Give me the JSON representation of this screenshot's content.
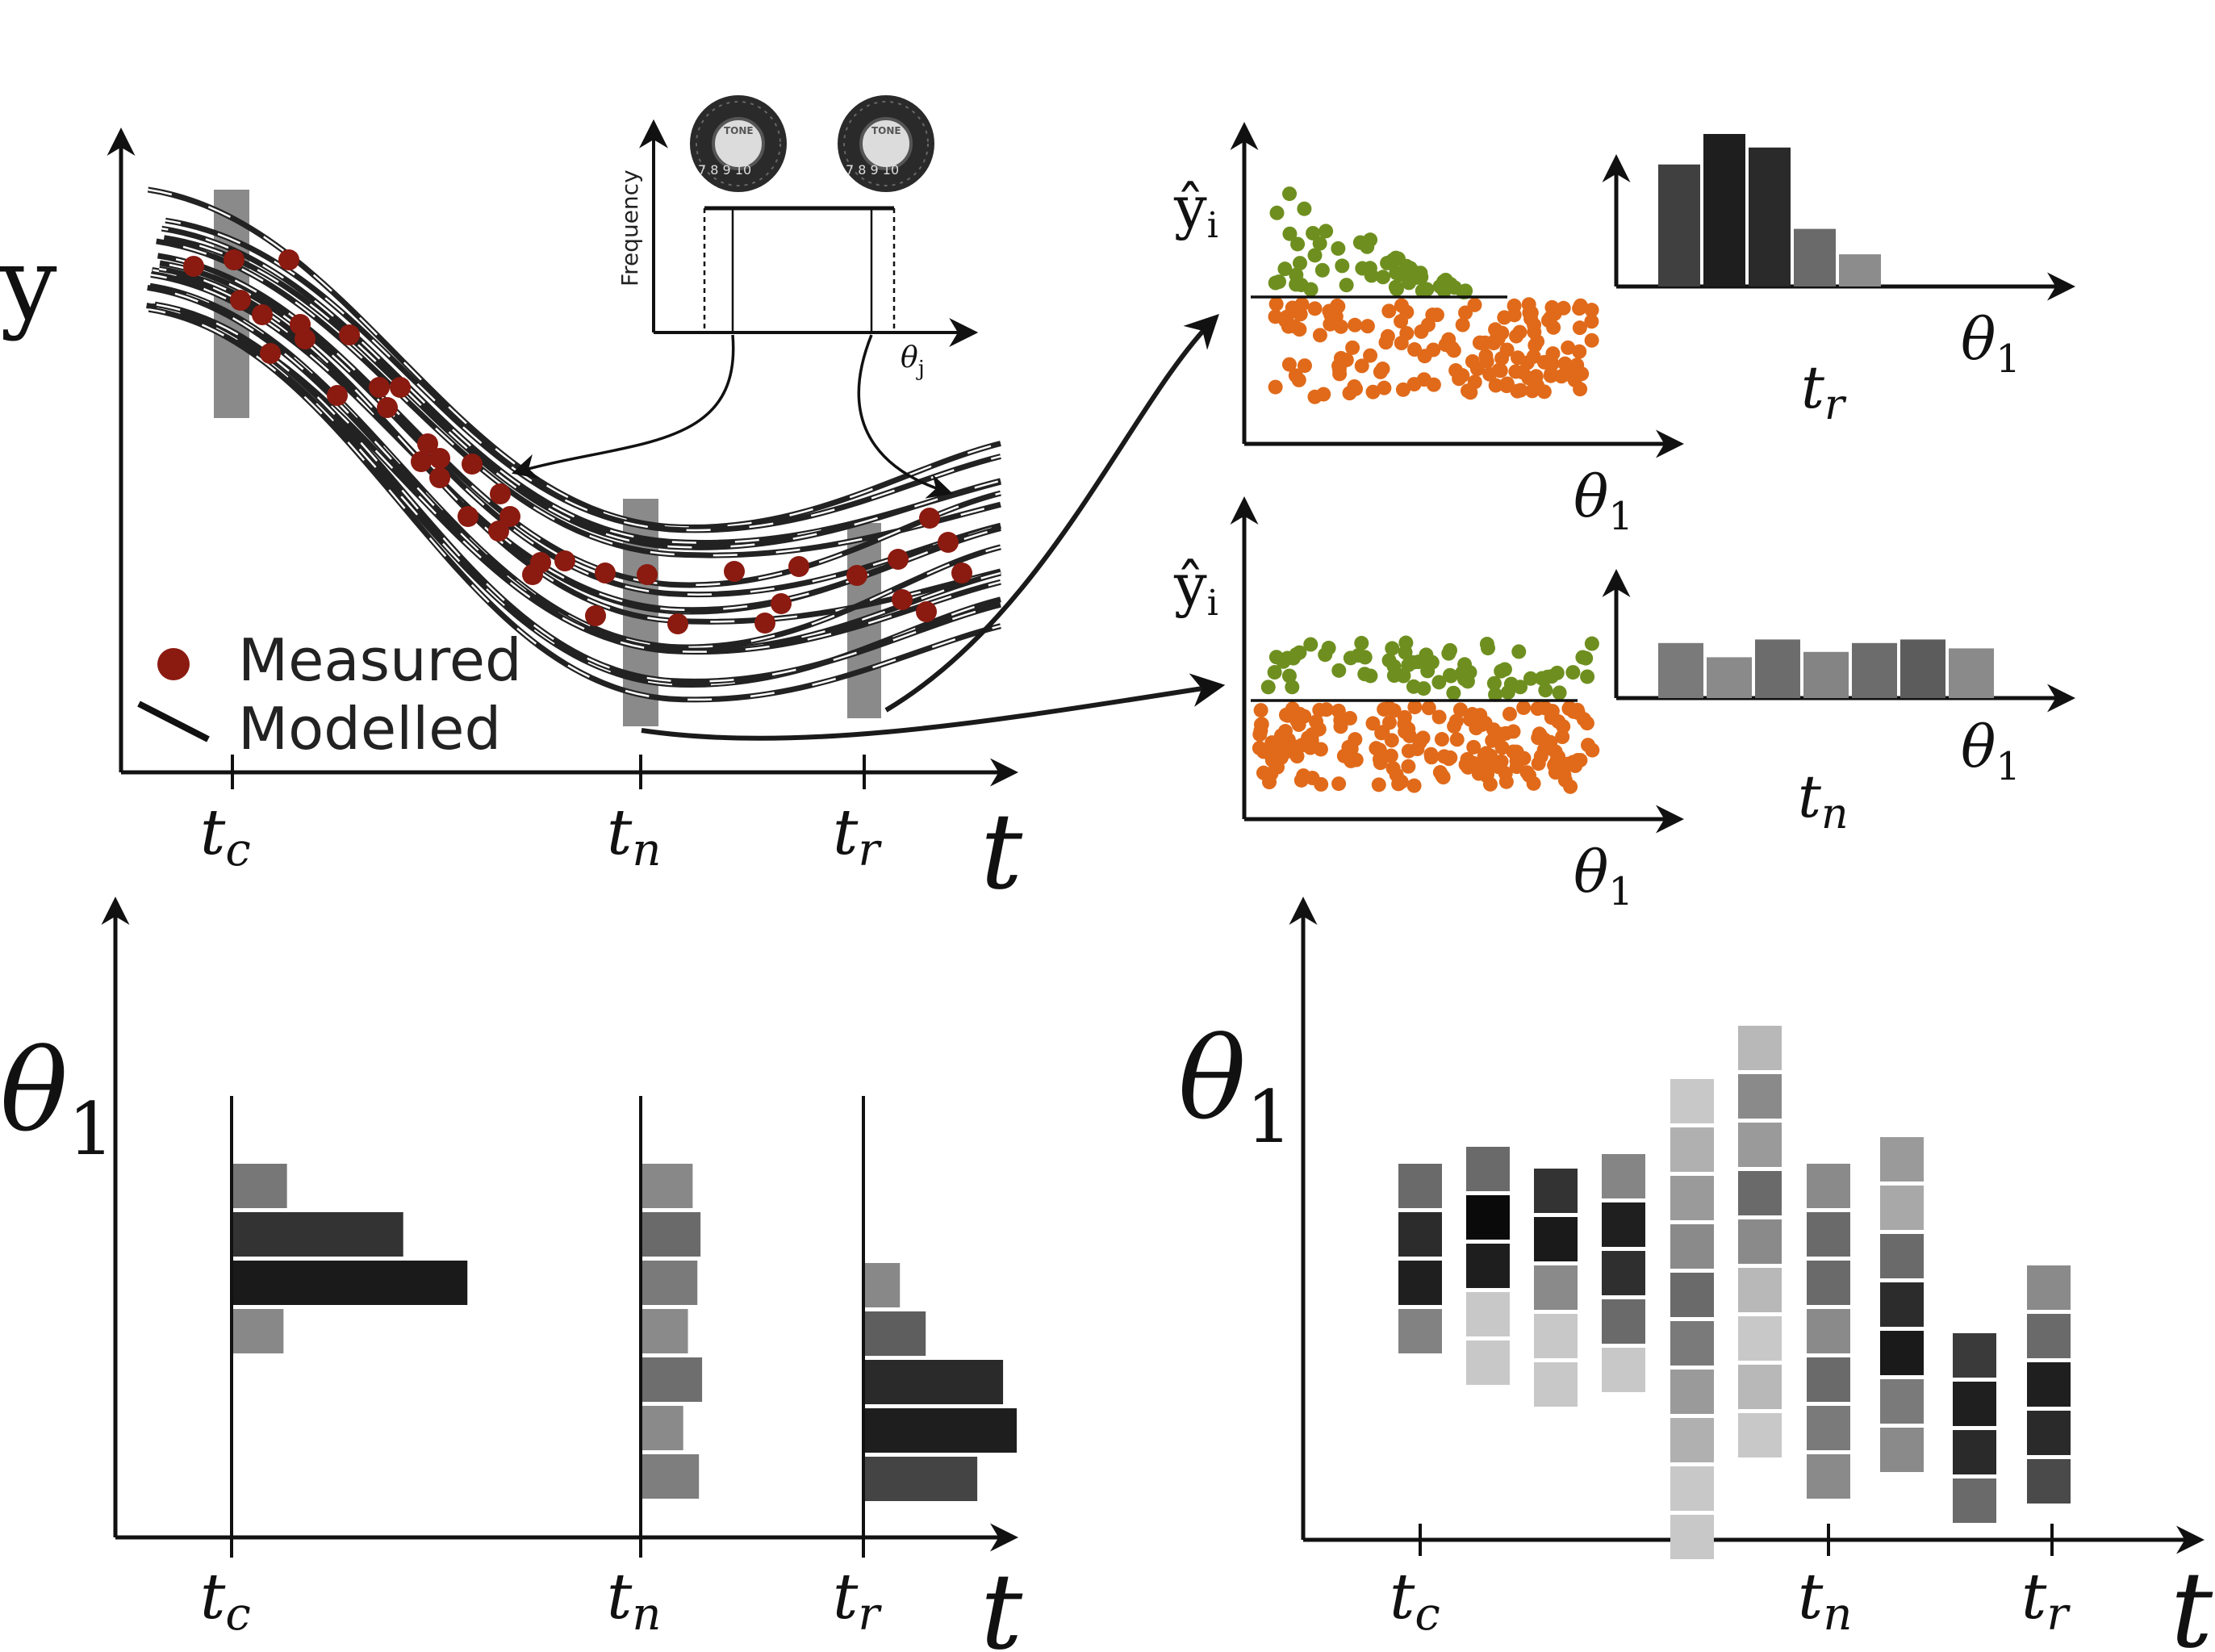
{
  "legend": {
    "measured": "Measured",
    "modelled": "Modelled"
  },
  "labels": {
    "y": "y",
    "t": "t",
    "theta1": "θ",
    "theta1_sub": "1",
    "theta_j": "θ",
    "theta_j_sub": "j",
    "yhat": "ŷ",
    "yhat_sub": "i",
    "frequency": "Frequency",
    "tone": "TONE",
    "t_c": "t",
    "t_c_sub": "c",
    "t_n": "t",
    "t_n_sub": "n",
    "t_r": "t",
    "t_r_sub": "r"
  },
  "colors": {
    "measured": "#8b1a10",
    "accepted": "#6e8f1f",
    "rejected": "#e06a1a",
    "model_line": "#222222",
    "highlight": "#8a8a8a"
  },
  "icons": [
    "tone-knob-icon",
    "tone-knob-icon"
  ],
  "chart_data": [
    {
      "type": "histogram",
      "panel": "top-right-upper",
      "caption": "t_r",
      "values": [
        0.72,
        0.9,
        0.82,
        0.34,
        0.19
      ],
      "shades": [
        "#404040",
        "#1e1e1e",
        "#2a2a2a",
        "#6a6a6a",
        "#8c8c8c"
      ]
    },
    {
      "type": "histogram",
      "panel": "top-right-lower",
      "caption": "t_n",
      "values": [
        0.62,
        0.46,
        0.66,
        0.52,
        0.62,
        0.66,
        0.56
      ],
      "shades": [
        "#7a7a7a",
        "#8a8a8a",
        "#6c6c6c",
        "#848484",
        "#6c6c6c",
        "#5c5c5c",
        "#8a8a8a"
      ]
    },
    {
      "type": "bar",
      "panel": "bottom-left",
      "groups": [
        {
          "time": "t_c",
          "lengths": [
            0.31,
            0.98,
            1.35,
            0.29
          ],
          "shades": [
            "#777777",
            "#333333",
            "#1a1a1a",
            "#888888"
          ]
        },
        {
          "time": "t_n",
          "lengths": [
            0.32,
            0.37,
            0.35,
            0.29,
            0.38,
            0.26,
            0.36
          ],
          "shades": [
            "#888888",
            "#6a6a6a",
            "#7a7a7a",
            "#8a8a8a",
            "#6e6e6e",
            "#8a8a8a",
            "#7e7e7e"
          ]
        },
        {
          "time": "t_r",
          "lengths": [
            0.23,
            0.4,
            0.91,
            1.0,
            0.74
          ],
          "shades": [
            "#888888",
            "#5e5e5e",
            "#2a2a2a",
            "#1e1e1e",
            "#444444"
          ]
        }
      ]
    },
    {
      "type": "heatmap",
      "panel": "bottom-right",
      "columns": [
        {
          "start": 0.0,
          "shades": [
            "#6a6a6a",
            "#2c2c2c",
            "#1f1f1f",
            "#828282"
          ]
        },
        {
          "start": -0.35,
          "shades": [
            "#6a6a6a",
            "#0a0a0a",
            "#1e1e1e",
            "#c8c8c8",
            "#c8c8c8"
          ]
        },
        {
          "start": 0.1,
          "shades": [
            "#333333",
            "#1a1a1a",
            "#8a8a8a",
            "#c8c8c8",
            "#c8c8c8"
          ]
        },
        {
          "start": -0.2,
          "shades": [
            "#858585",
            "#1f1f1f",
            "#2f2f2f",
            "#6a6a6a",
            "#c8c8c8"
          ]
        },
        {
          "start": -1.75,
          "shades": [
            "#c8c8c8",
            "#b0b0b0",
            "#9a9a9a",
            "#8a8a8a",
            "#6a6a6a",
            "#7a7a7a",
            "#9a9a9a",
            "#b0b0b0",
            "#c8c8c8",
            "#c8c8c8"
          ]
        },
        {
          "start": -2.85,
          "shades": [
            "#b8b8b8",
            "#8a8a8a",
            "#9a9a9a",
            "#6a6a6a",
            "#8a8a8a",
            "#b8b8b8",
            "#c8c8c8",
            "#b8b8b8",
            "#c8c8c8"
          ]
        },
        {
          "start": 0.0,
          "shades": [
            "#8a8a8a",
            "#6a6a6a",
            "#6a6a6a",
            "#8a8a8a",
            "#6a6a6a",
            "#7a7a7a",
            "#8a8a8a"
          ]
        },
        {
          "start": -0.55,
          "shades": [
            "#9a9a9a",
            "#a8a8a8",
            "#6a6a6a",
            "#2c2c2c",
            "#1a1a1a",
            "#7a7a7a",
            "#8a8a8a"
          ]
        },
        {
          "start": 3.5,
          "shades": [
            "#3a3a3a",
            "#1f1f1f",
            "#2a2a2a",
            "#6a6a6a"
          ]
        },
        {
          "start": 2.1,
          "shades": [
            "#8a8a8a",
            "#6a6a6a",
            "#1f1f1f",
            "#2a2a2a",
            "#4a4a4a"
          ]
        }
      ]
    }
  ]
}
